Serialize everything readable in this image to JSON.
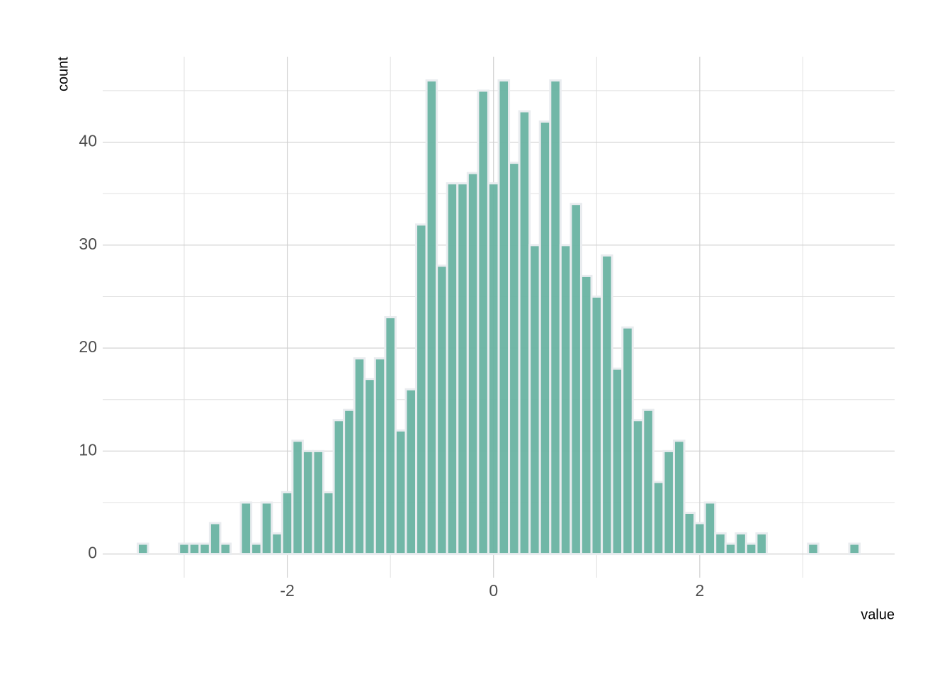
{
  "chart_data": {
    "type": "histogram",
    "x_label": "value",
    "y_label": "count",
    "bins": [
      -3.45,
      -3.35,
      -3.25,
      -3.15,
      -3.05,
      -2.95,
      -2.85,
      -2.75,
      -2.65,
      -2.55,
      -2.45,
      -2.35,
      -2.25,
      -2.15,
      -2.05,
      -1.95,
      -1.85,
      -1.75,
      -1.65,
      -1.55,
      -1.45,
      -1.35,
      -1.25,
      -1.15,
      -1.05,
      -0.95,
      -0.85,
      -0.75,
      -0.65,
      -0.55,
      -0.45,
      -0.35,
      -0.25,
      -0.15,
      -0.05,
      0.05,
      0.15,
      0.25,
      0.35,
      0.45,
      0.55,
      0.65,
      0.75,
      0.85,
      0.95,
      1.05,
      1.15,
      1.25,
      1.35,
      1.45,
      1.55,
      1.65,
      1.75,
      1.85,
      1.95,
      2.05,
      2.15,
      2.25,
      2.35,
      2.45,
      2.55,
      2.65,
      2.75,
      2.85,
      2.95,
      3.05,
      3.15,
      3.25,
      3.35,
      3.45,
      3.55
    ],
    "values": [
      1,
      0,
      0,
      0,
      1,
      1,
      1,
      3,
      1,
      0,
      5,
      1,
      5,
      2,
      6,
      11,
      10,
      10,
      6,
      13,
      14,
      19,
      17,
      19,
      23,
      12,
      16,
      32,
      46,
      28,
      36,
      36,
      37,
      45,
      36,
      46,
      38,
      43,
      30,
      42,
      46,
      30,
      34,
      27,
      25,
      29,
      18,
      22,
      13,
      14,
      7,
      10,
      11,
      4,
      3,
      5,
      2,
      1,
      2,
      1,
      2,
      0,
      0,
      0,
      0,
      1,
      0,
      0,
      0,
      1
    ],
    "color": "#69b3a2",
    "edge_color": "#e9ecef",
    "xlim": [
      -3.79,
      3.89
    ],
    "xticks": [
      -2,
      0,
      2
    ],
    "x_minor_ticks": [
      -3,
      -1,
      1,
      3
    ],
    "ylim": [
      -2.3,
      48.3
    ],
    "yticks": [
      0,
      10,
      20,
      30,
      40
    ],
    "y_minor_ticks": [
      5,
      15,
      25,
      35,
      45
    ],
    "grid": true
  }
}
